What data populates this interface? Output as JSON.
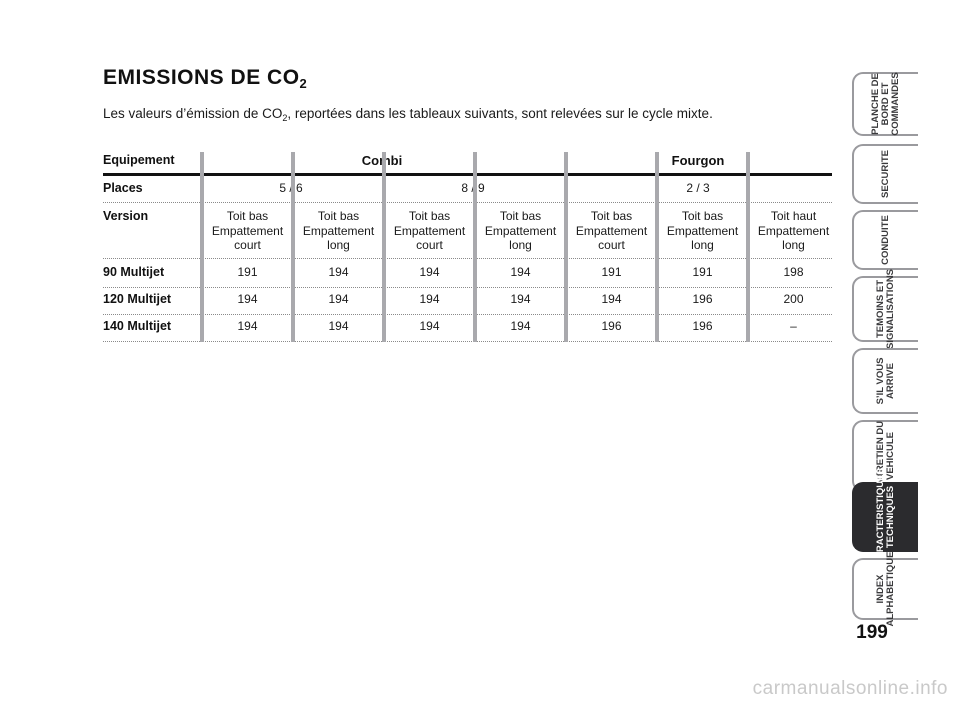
{
  "title": {
    "text": "EMISSIONS DE CO",
    "sub": "2"
  },
  "intro": {
    "before": "Les valeurs d’émission de CO",
    "sub": "2",
    "after": ", reportées dans les tableaux suivants, sont relevées sur le cycle mixte."
  },
  "table": {
    "row_labels": {
      "equipement": "Equipement",
      "places": "Places",
      "version": "Version"
    },
    "groups": [
      "Combi",
      "Fourgon"
    ],
    "places": [
      "5 / 6",
      "8 / 9",
      "2 / 3"
    ],
    "versions": [
      [
        "Toit bas",
        "Empattement",
        "court"
      ],
      [
        "Toit bas",
        "Empattement",
        "long"
      ],
      [
        "Toit bas",
        "Empattement",
        "court"
      ],
      [
        "Toit bas",
        "Empattement",
        "long"
      ],
      [
        "Toit bas",
        "Empattement",
        "court"
      ],
      [
        "Toit bas",
        "Empattement",
        "long"
      ],
      [
        "Toit haut",
        "Empattement",
        "long"
      ]
    ],
    "rows": [
      {
        "label": "90 Multijet",
        "values": [
          "191",
          "194",
          "194",
          "194",
          "191",
          "191",
          "198"
        ]
      },
      {
        "label": "120 Multijet",
        "values": [
          "194",
          "194",
          "194",
          "194",
          "194",
          "196",
          "200"
        ]
      },
      {
        "label": "140 Multijet",
        "values": [
          "194",
          "194",
          "194",
          "194",
          "196",
          "196",
          "–"
        ]
      }
    ]
  },
  "side_tabs": [
    [
      "PLANCHE DE",
      "BORD ET",
      "COMMANDES"
    ],
    [
      "SECURITE"
    ],
    [
      "CONDUITE"
    ],
    [
      "TEMOINS ET",
      "SIGNALISATIONS"
    ],
    [
      "S’IL VOUS",
      "ARRIVE"
    ],
    [
      "ENTRETIEN DU",
      "VEHICULE"
    ],
    [
      "CARACTERISTIQUES",
      "TECHNIQUES"
    ],
    [
      "INDEX",
      "ALPHABETIQUE"
    ]
  ],
  "active_tab_index": 6,
  "page_number": "199",
  "watermark": "carmanualsonline.info"
}
